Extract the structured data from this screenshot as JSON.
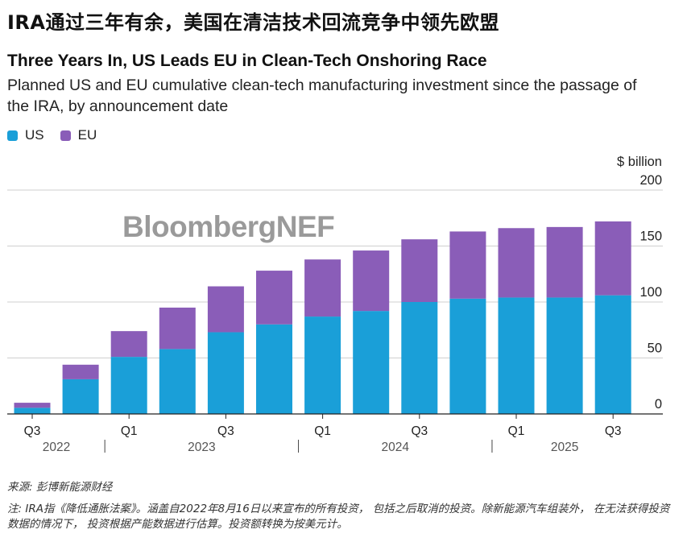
{
  "header": {
    "cn_title": "IRA通过三年有余，美国在清洁技术回流竞争中领先欧盟",
    "title": "Three Years In, US Leads EU in Clean-Tech Onshoring Race",
    "subtitle": "Planned US and EU cumulative clean-tech manufacturing investment since the passage of the IRA, by announcement date"
  },
  "legend": [
    {
      "label": "US",
      "color": "#1a9fd8"
    },
    {
      "label": "EU",
      "color": "#8a5db8"
    }
  ],
  "watermark": "BloombergNEF",
  "chart_data": {
    "type": "bar",
    "stacked": true,
    "categories": [
      "Q3 2022",
      "Q4 2022",
      "Q1 2023",
      "Q2 2023",
      "Q3 2023",
      "Q4 2023",
      "Q1 2024",
      "Q2 2024",
      "Q3 2024",
      "Q4 2024",
      "Q1 2025",
      "Q2 2025",
      "Q3 2025"
    ],
    "x_tick_labels": [
      {
        "index": 0,
        "label": "Q3"
      },
      {
        "index": 2,
        "label": "Q1"
      },
      {
        "index": 4,
        "label": "Q3"
      },
      {
        "index": 6,
        "label": "Q1"
      },
      {
        "index": 8,
        "label": "Q3"
      },
      {
        "index": 10,
        "label": "Q1"
      },
      {
        "index": 12,
        "label": "Q3"
      }
    ],
    "year_labels": [
      {
        "label": "2022",
        "start": 0,
        "end": 1
      },
      {
        "label": "2023",
        "start": 2,
        "end": 5
      },
      {
        "label": "2024",
        "start": 6,
        "end": 9
      },
      {
        "label": "2025",
        "start": 10,
        "end": 12
      }
    ],
    "series": [
      {
        "name": "US",
        "color": "#1a9fd8",
        "values": [
          5.5,
          31,
          51,
          58,
          73,
          80,
          87,
          92,
          100,
          103,
          104,
          104,
          106
        ]
      },
      {
        "name": "EU",
        "color": "#8a5db8",
        "values": [
          4.5,
          13,
          23,
          37,
          41,
          48,
          51,
          54,
          56,
          60,
          62,
          63,
          66
        ]
      }
    ],
    "yaxis_unit": "$ billion",
    "y_ticks": [
      0,
      50,
      100,
      150,
      200
    ],
    "ylim": [
      0,
      200
    ]
  },
  "footer": {
    "source": "来源:   彭博新能源财经",
    "note": "注:   IRA指《降低通胀法案》。涵盖自2022年8月16日以来宣布的所有投资，  包括之后取消的投资。除新能源汽车组装外，  在无法获得投资数据的情况下，  投资根据产能数据进行估算。投资额转换为按美元计。"
  }
}
